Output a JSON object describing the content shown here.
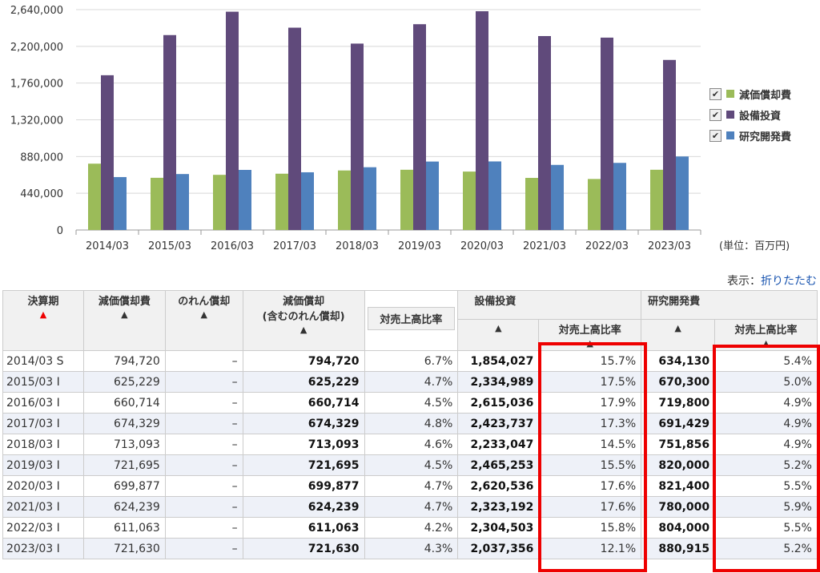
{
  "chart_data": {
    "type": "bar",
    "categories": [
      "2014/03",
      "2015/03",
      "2016/03",
      "2017/03",
      "2018/03",
      "2019/03",
      "2020/03",
      "2021/03",
      "2022/03",
      "2023/03"
    ],
    "series": [
      {
        "name": "減価償却費",
        "color": "#9bbb59",
        "values": [
          794720,
          625229,
          660714,
          674329,
          713093,
          721695,
          699877,
          624239,
          611063,
          721630
        ]
      },
      {
        "name": "設備投資",
        "color": "#604a7b",
        "values": [
          1854027,
          2334989,
          2615036,
          2423737,
          2233047,
          2465253,
          2620536,
          2323192,
          2304503,
          2037356
        ]
      },
      {
        "name": "研究開発費",
        "color": "#4f81bd",
        "values": [
          634130,
          670300,
          719800,
          691429,
          751856,
          820000,
          821400,
          780000,
          804000,
          880915
        ]
      }
    ],
    "y_ticks": [
      "0",
      "440,000",
      "880,000",
      "1,320,000",
      "1,760,000",
      "2,200,000",
      "2,640,000"
    ],
    "ylim": [
      0,
      2640000
    ],
    "grid": true,
    "legend_position": "right"
  },
  "legend": {
    "check": "✔"
  },
  "unit_label": "(単位：百万円)",
  "display": {
    "label": "表示：",
    "link": "折りたたむ"
  },
  "table": {
    "headers": {
      "period": "決算期",
      "depreciation": "減価償却費",
      "goodwill": "のれん償却",
      "dep_incl": "減価償却\n(含むのれん償却)",
      "capex": "設備投資",
      "rnd": "研究開発費",
      "ratio": "対売上高比率"
    },
    "arrows": {
      "up": "▲"
    },
    "rows": [
      {
        "period": "2014/03 S",
        "dep": "794,720",
        "goodwill": "–",
        "dep_incl": "794,720",
        "dep_ratio": "6.7%",
        "capex": "1,854,027",
        "capex_ratio": "15.7%",
        "rnd": "634,130",
        "rnd_ratio": "5.4%"
      },
      {
        "period": "2015/03 I",
        "dep": "625,229",
        "goodwill": "–",
        "dep_incl": "625,229",
        "dep_ratio": "4.7%",
        "capex": "2,334,989",
        "capex_ratio": "17.5%",
        "rnd": "670,300",
        "rnd_ratio": "5.0%"
      },
      {
        "period": "2016/03 I",
        "dep": "660,714",
        "goodwill": "–",
        "dep_incl": "660,714",
        "dep_ratio": "4.5%",
        "capex": "2,615,036",
        "capex_ratio": "17.9%",
        "rnd": "719,800",
        "rnd_ratio": "4.9%"
      },
      {
        "period": "2017/03 I",
        "dep": "674,329",
        "goodwill": "–",
        "dep_incl": "674,329",
        "dep_ratio": "4.8%",
        "capex": "2,423,737",
        "capex_ratio": "17.3%",
        "rnd": "691,429",
        "rnd_ratio": "4.9%"
      },
      {
        "period": "2018/03 I",
        "dep": "713,093",
        "goodwill": "–",
        "dep_incl": "713,093",
        "dep_ratio": "4.6%",
        "capex": "2,233,047",
        "capex_ratio": "14.5%",
        "rnd": "751,856",
        "rnd_ratio": "4.9%"
      },
      {
        "period": "2019/03 I",
        "dep": "721,695",
        "goodwill": "–",
        "dep_incl": "721,695",
        "dep_ratio": "4.5%",
        "capex": "2,465,253",
        "capex_ratio": "15.5%",
        "rnd": "820,000",
        "rnd_ratio": "5.2%"
      },
      {
        "period": "2020/03 I",
        "dep": "699,877",
        "goodwill": "–",
        "dep_incl": "699,877",
        "dep_ratio": "4.7%",
        "capex": "2,620,536",
        "capex_ratio": "17.6%",
        "rnd": "821,400",
        "rnd_ratio": "5.5%"
      },
      {
        "period": "2021/03 I",
        "dep": "624,239",
        "goodwill": "–",
        "dep_incl": "624,239",
        "dep_ratio": "4.7%",
        "capex": "2,323,192",
        "capex_ratio": "17.6%",
        "rnd": "780,000",
        "rnd_ratio": "5.9%"
      },
      {
        "period": "2022/03 I",
        "dep": "611,063",
        "goodwill": "–",
        "dep_incl": "611,063",
        "dep_ratio": "4.2%",
        "capex": "2,304,503",
        "capex_ratio": "15.8%",
        "rnd": "804,000",
        "rnd_ratio": "5.5%"
      },
      {
        "period": "2023/03 I",
        "dep": "721,630",
        "goodwill": "–",
        "dep_incl": "721,630",
        "dep_ratio": "4.3%",
        "capex": "2,037,356",
        "capex_ratio": "12.1%",
        "rnd": "880,915",
        "rnd_ratio": "5.2%"
      }
    ]
  }
}
